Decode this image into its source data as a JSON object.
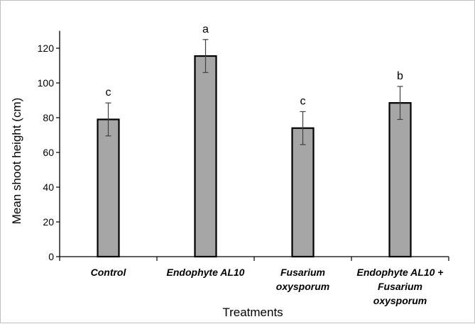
{
  "chart_data": {
    "type": "bar",
    "categories": [
      [
        "Control"
      ],
      [
        "Endophyte AL10"
      ],
      [
        "Fusarium",
        "oxysporum"
      ],
      [
        "Endophyte AL10 +",
        "Fusarium",
        "oxysporum"
      ]
    ],
    "values": [
      79,
      115.5,
      74,
      88.5
    ],
    "errors": [
      9.5,
      9.5,
      9.5,
      9.5
    ],
    "significance_letters": [
      "c",
      "a",
      "c",
      "b"
    ],
    "xlabel": "Treatments",
    "ylabel": "Mean shoot height (cm)",
    "ylim": [
      0,
      130
    ],
    "yticks": [
      "0",
      "20",
      "40",
      "60",
      "80",
      "100",
      "120"
    ],
    "grid": false,
    "legend": "none",
    "colors": {
      "bar_fill": "#a6a6a6",
      "bar_stroke": "#000000",
      "axis": "#000000",
      "error_bar": "#404040"
    }
  }
}
